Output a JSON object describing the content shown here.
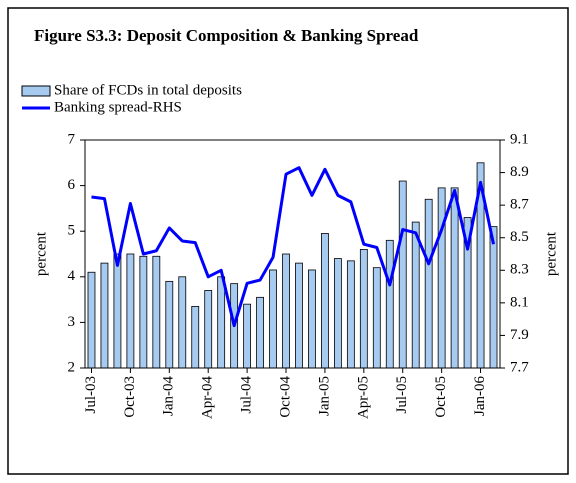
{
  "chart_data": {
    "type": "bar-line",
    "title": "Figure S3.3: Deposit Composition & Banking Spread",
    "categories": [
      "Jul-03",
      null,
      null,
      "Oct-03",
      null,
      null,
      "Jan-04",
      null,
      null,
      "Apr-04",
      null,
      null,
      "Jul-04",
      null,
      null,
      "Oct-04",
      null,
      null,
      "Jan-05",
      null,
      null,
      "Apr-05",
      null,
      null,
      "Jul-05",
      null,
      null,
      "Oct-05",
      null,
      null,
      "Jan-06",
      null
    ],
    "series": [
      {
        "name": "Share of FCDs in total deposits",
        "type": "bar",
        "color": "#a6caf0",
        "values": [
          4.1,
          4.3,
          4.5,
          4.5,
          4.45,
          4.45,
          3.9,
          4.0,
          3.35,
          3.7,
          4.0,
          3.85,
          3.4,
          3.55,
          4.15,
          4.5,
          4.3,
          4.15,
          4.95,
          4.4,
          4.35,
          4.6,
          4.2,
          4.8,
          6.1,
          5.2,
          5.7,
          5.95,
          5.95,
          5.3,
          6.5,
          5.1
        ]
      },
      {
        "name": "Banking spread-RHS",
        "type": "line",
        "color": "#0000ff",
        "axis": "y2",
        "values": [
          8.75,
          8.74,
          8.33,
          8.71,
          8.4,
          8.42,
          8.56,
          8.48,
          8.47,
          8.26,
          8.3,
          7.96,
          8.22,
          8.24,
          8.38,
          8.89,
          8.93,
          8.76,
          8.92,
          8.76,
          8.72,
          8.46,
          8.44,
          8.21,
          8.55,
          8.53,
          8.34,
          8.55,
          8.79,
          8.43,
          8.84,
          8.46
        ]
      }
    ],
    "ylabel": "percent",
    "y2label": "percent",
    "ylim": [
      2,
      7
    ],
    "yticks": [
      2,
      3,
      4,
      5,
      6,
      7
    ],
    "y2lim": [
      7.7,
      9.1
    ],
    "y2ticks": [
      7.7,
      7.9,
      8.1,
      8.3,
      8.5,
      8.7,
      8.9,
      9.1
    ]
  }
}
